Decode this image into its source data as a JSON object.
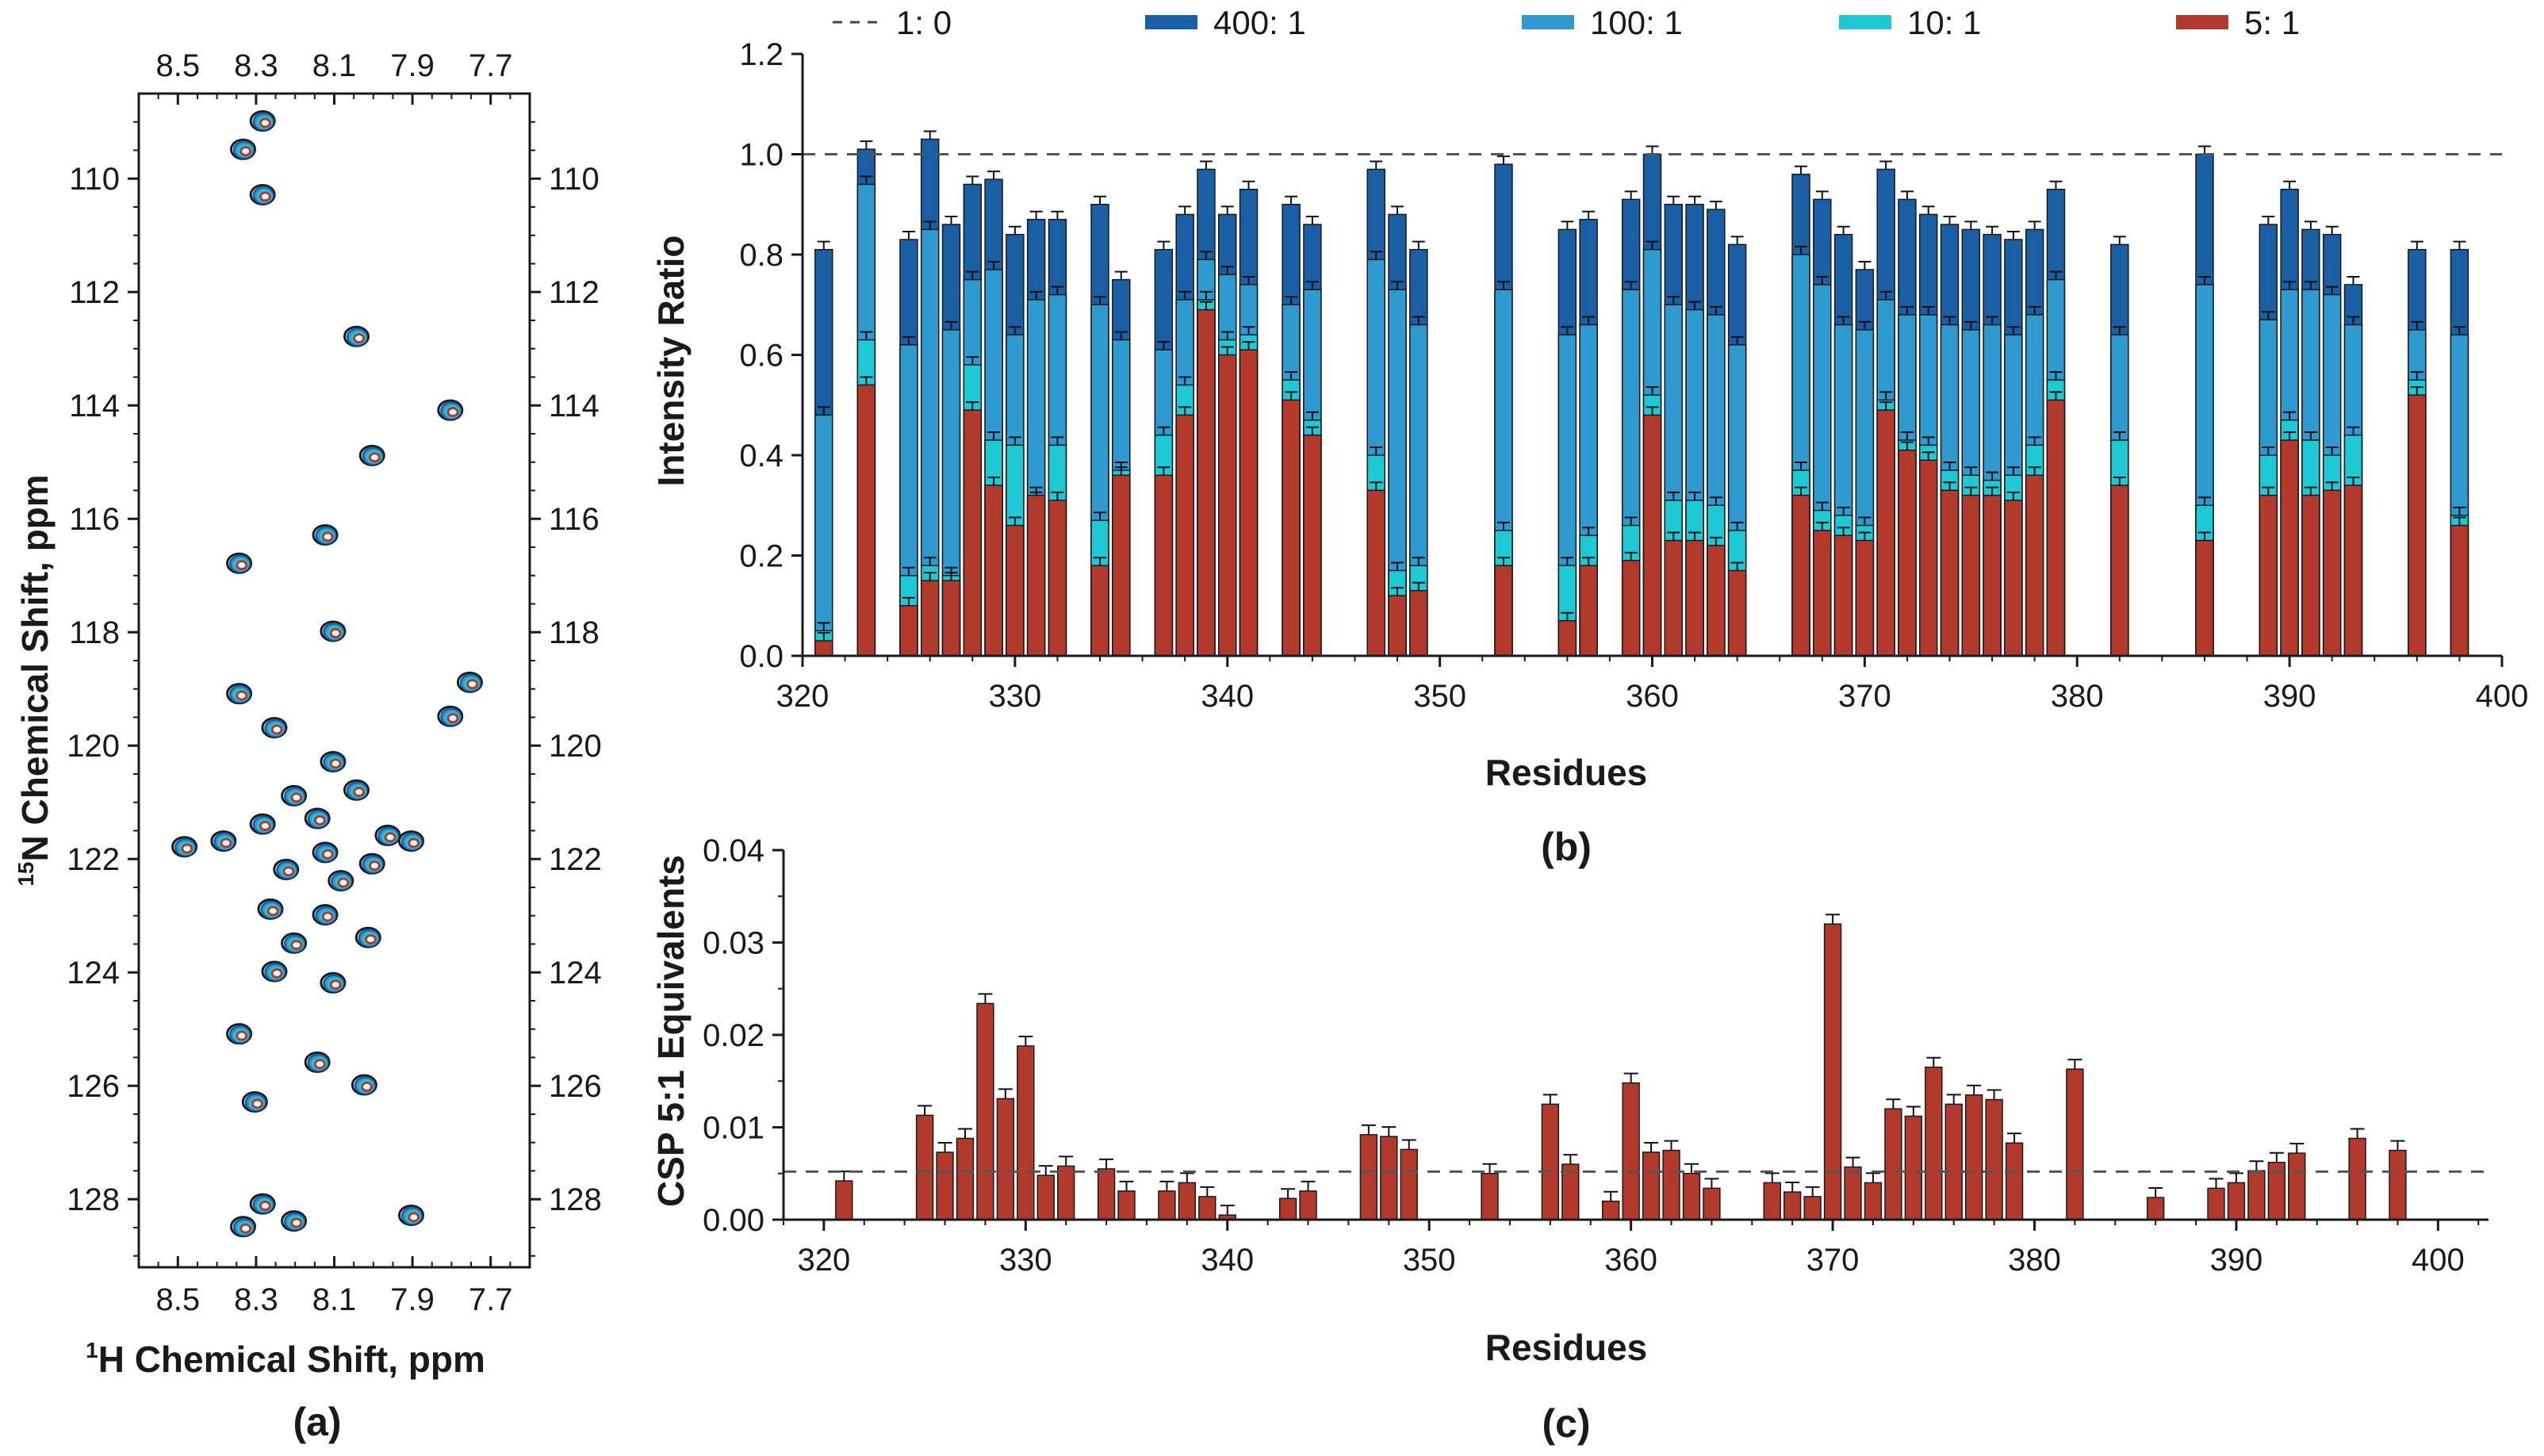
{
  "figure": {
    "panel_a": "(a)",
    "panel_b": "(b)",
    "panel_c": "(c)"
  },
  "colors": {
    "ratio_1_0": "#444444",
    "ratio_400_1": "#1a5fa3",
    "ratio_100_1": "#2e9ad0",
    "ratio_10_1": "#1ec9d6",
    "ratio_5_1": "#b23a2d"
  },
  "chart_data": [
    {
      "id": "a",
      "type": "scatter",
      "title": "",
      "xlabel_prefix": "1",
      "xlabel": "H Chemical Shift, ppm",
      "ylabel_prefix": "15",
      "ylabel": "N Chemical Shift, ppm",
      "xlim": [
        8.6,
        7.6
      ],
      "ylim": [
        108.5,
        129.2
      ],
      "xticks": [
        "8.5",
        "8.3",
        "8.1",
        "7.9",
        "7.7"
      ],
      "yticks": [
        "110",
        "112",
        "114",
        "116",
        "118",
        "120",
        "122",
        "124",
        "126",
        "128"
      ],
      "peaks_1H_15N": [
        [
          8.28,
          109.0
        ],
        [
          8.33,
          109.5
        ],
        [
          8.28,
          110.3
        ],
        [
          8.04,
          112.8
        ],
        [
          7.8,
          114.1
        ],
        [
          8.0,
          114.9
        ],
        [
          8.12,
          116.3
        ],
        [
          8.34,
          116.8
        ],
        [
          8.1,
          118.0
        ],
        [
          8.34,
          119.1
        ],
        [
          7.8,
          119.5
        ],
        [
          7.75,
          118.9
        ],
        [
          8.25,
          119.7
        ],
        [
          8.1,
          120.3
        ],
        [
          8.2,
          120.9
        ],
        [
          8.04,
          120.8
        ],
        [
          8.14,
          121.3
        ],
        [
          8.28,
          121.4
        ],
        [
          8.48,
          121.8
        ],
        [
          8.38,
          121.7
        ],
        [
          8.12,
          121.9
        ],
        [
          7.96,
          121.6
        ],
        [
          7.9,
          121.7
        ],
        [
          8.22,
          122.2
        ],
        [
          8.08,
          122.4
        ],
        [
          8.0,
          122.1
        ],
        [
          8.26,
          122.9
        ],
        [
          8.12,
          123.0
        ],
        [
          8.2,
          123.5
        ],
        [
          8.01,
          123.4
        ],
        [
          8.25,
          124.0
        ],
        [
          8.1,
          124.2
        ],
        [
          8.34,
          125.1
        ],
        [
          8.14,
          125.6
        ],
        [
          8.02,
          126.0
        ],
        [
          8.3,
          126.3
        ],
        [
          8.28,
          128.1
        ],
        [
          8.33,
          128.5
        ],
        [
          8.2,
          128.4
        ],
        [
          7.9,
          128.3
        ]
      ],
      "series": [
        {
          "name": "1: 0",
          "color": "#1b1b1b"
        },
        {
          "name": "400: 1",
          "color": "#1a5fa3"
        },
        {
          "name": "100: 1",
          "color": "#2e9ad0"
        },
        {
          "name": "10: 1",
          "color": "#1ec9d6"
        },
        {
          "name": "5: 1",
          "color": "#b23a2d"
        }
      ]
    },
    {
      "id": "b",
      "type": "bar",
      "title": "",
      "xlabel": "Residues",
      "ylabel": "Intensity Ratio",
      "xlim": [
        320,
        400
      ],
      "ylim": [
        0,
        1.2
      ],
      "xticks": [
        "320",
        "330",
        "340",
        "350",
        "360",
        "370",
        "380",
        "390",
        "400"
      ],
      "yticks": [
        "0.0",
        "0.2",
        "0.4",
        "0.6",
        "0.8",
        "1.0",
        "1.2"
      ],
      "legend_position": "top",
      "reference_line": {
        "name": "1: 0",
        "value": 1.0
      },
      "residues": [
        321,
        323,
        325,
        326,
        327,
        328,
        329,
        330,
        331,
        332,
        334,
        335,
        337,
        338,
        339,
        340,
        341,
        343,
        344,
        347,
        348,
        349,
        353,
        356,
        357,
        359,
        360,
        361,
        362,
        363,
        364,
        367,
        368,
        369,
        370,
        371,
        372,
        373,
        374,
        375,
        376,
        377,
        378,
        379,
        382,
        386,
        389,
        390,
        391,
        392,
        393,
        396,
        398
      ],
      "series": [
        {
          "name": "400: 1",
          "color": "#1a5fa3",
          "values": [
            0.81,
            1.01,
            0.83,
            1.03,
            0.86,
            0.94,
            0.95,
            0.84,
            0.87,
            0.87,
            0.9,
            0.75,
            0.81,
            0.88,
            0.97,
            0.88,
            0.93,
            0.9,
            0.86,
            0.97,
            0.88,
            0.81,
            0.98,
            0.85,
            0.87,
            0.91,
            1.0,
            0.9,
            0.9,
            0.89,
            0.82,
            0.96,
            0.91,
            0.84,
            0.77,
            0.97,
            0.91,
            0.88,
            0.86,
            0.85,
            0.84,
            0.83,
            0.85,
            0.93,
            0.82,
            1.0,
            0.86,
            0.93,
            0.85,
            0.84,
            0.74,
            0.81,
            0.81
          ]
        },
        {
          "name": "100: 1",
          "color": "#2e9ad0",
          "values": [
            0.48,
            0.94,
            0.62,
            0.85,
            0.65,
            0.75,
            0.77,
            0.64,
            0.71,
            0.72,
            0.7,
            0.63,
            0.61,
            0.71,
            0.79,
            0.76,
            0.74,
            0.7,
            0.73,
            0.79,
            0.73,
            0.66,
            0.73,
            0.64,
            0.66,
            0.73,
            0.81,
            0.7,
            0.69,
            0.68,
            0.62,
            0.8,
            0.74,
            0.66,
            0.65,
            0.71,
            0.68,
            0.68,
            0.66,
            0.65,
            0.66,
            0.64,
            0.68,
            0.75,
            0.64,
            0.74,
            0.67,
            0.73,
            0.73,
            0.72,
            0.66,
            0.65,
            0.64
          ]
        },
        {
          "name": "10: 1",
          "color": "#1ec9d6",
          "values": [
            0.05,
            0.63,
            0.16,
            0.18,
            0.16,
            0.58,
            0.43,
            0.42,
            0.31,
            0.42,
            0.27,
            0.37,
            0.44,
            0.54,
            0.71,
            0.63,
            0.64,
            0.55,
            0.47,
            0.4,
            0.17,
            0.18,
            0.25,
            0.18,
            0.24,
            0.26,
            0.52,
            0.31,
            0.31,
            0.3,
            0.25,
            0.37,
            0.29,
            0.28,
            0.26,
            0.51,
            0.43,
            0.42,
            0.37,
            0.36,
            0.35,
            0.36,
            0.42,
            0.55,
            0.43,
            0.3,
            0.4,
            0.47,
            0.43,
            0.4,
            0.44,
            0.55,
            0.28
          ]
        },
        {
          "name": "5: 1",
          "color": "#b23a2d",
          "values": [
            0.03,
            0.54,
            0.1,
            0.15,
            0.15,
            0.49,
            0.34,
            0.26,
            0.32,
            0.31,
            0.18,
            0.36,
            0.36,
            0.48,
            0.69,
            0.6,
            0.61,
            0.51,
            0.44,
            0.33,
            0.12,
            0.13,
            0.18,
            0.07,
            0.18,
            0.19,
            0.48,
            0.23,
            0.23,
            0.22,
            0.17,
            0.32,
            0.25,
            0.24,
            0.23,
            0.49,
            0.41,
            0.39,
            0.33,
            0.32,
            0.32,
            0.31,
            0.36,
            0.51,
            0.34,
            0.23,
            0.32,
            0.43,
            0.32,
            0.33,
            0.34,
            0.52,
            0.26
          ]
        }
      ]
    },
    {
      "id": "c",
      "type": "bar",
      "title": "",
      "xlabel": "Residues",
      "ylabel": "CSP 5:1 Equivalents",
      "xlim": [
        318,
        402.5
      ],
      "ylim": [
        0,
        0.04
      ],
      "xticks": [
        "320",
        "330",
        "340",
        "350",
        "360",
        "370",
        "380",
        "390",
        "400"
      ],
      "yticks": [
        "0.00",
        "0.01",
        "0.02",
        "0.03",
        "0.04"
      ],
      "threshold": 0.0052,
      "color": "#b23a2d",
      "residues": [
        321,
        325,
        326,
        327,
        328,
        329,
        330,
        331,
        332,
        334,
        335,
        337,
        338,
        339,
        340,
        343,
        344,
        347,
        348,
        349,
        353,
        356,
        357,
        359,
        360,
        361,
        362,
        363,
        364,
        367,
        368,
        369,
        370,
        371,
        372,
        373,
        374,
        375,
        376,
        377,
        378,
        379,
        382,
        386,
        389,
        390,
        391,
        392,
        393,
        396,
        398
      ],
      "values": [
        0.0042,
        0.0113,
        0.0073,
        0.0088,
        0.0234,
        0.0131,
        0.0188,
        0.0048,
        0.0058,
        0.0055,
        0.0031,
        0.0031,
        0.004,
        0.0025,
        0.0005,
        0.0023,
        0.0031,
        0.0092,
        0.009,
        0.0076,
        0.005,
        0.0125,
        0.006,
        0.002,
        0.0148,
        0.0073,
        0.0075,
        0.005,
        0.0034,
        0.004,
        0.003,
        0.0025,
        0.032,
        0.0057,
        0.004,
        0.012,
        0.0112,
        0.0165,
        0.0125,
        0.0135,
        0.013,
        0.0083,
        0.0163,
        0.0024,
        0.0034,
        0.004,
        0.0053,
        0.0062,
        0.0072,
        0.0088,
        0.0075
      ]
    }
  ]
}
